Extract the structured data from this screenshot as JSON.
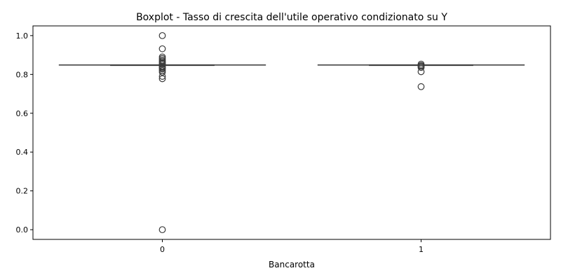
{
  "chart_data": {
    "type": "box",
    "title": "Boxplot - Tasso di crescita dell'utile operativo condizionato su Y",
    "xlabel": "Bancarotta",
    "ylabel": "",
    "categories": [
      "0",
      "1"
    ],
    "ylim": [
      -0.05,
      1.05
    ],
    "yticks": [
      0.0,
      0.2,
      0.4,
      0.6,
      0.8,
      1.0
    ],
    "ytick_labels": [
      "0.0",
      "0.2",
      "0.4",
      "0.6",
      "0.8",
      "1.0"
    ],
    "grid": false,
    "boxes": [
      {
        "category": "0",
        "whisker_low": 0.848,
        "q1": 0.848,
        "median": 0.848,
        "q3": 0.849,
        "whisker_high": 0.849,
        "outliers": [
          1.0,
          0.932,
          0.89,
          0.882,
          0.874,
          0.868,
          0.862,
          0.857,
          0.853,
          0.843,
          0.838,
          0.833,
          0.828,
          0.82,
          0.812,
          0.79,
          0.778,
          0.0
        ]
      },
      {
        "category": "1",
        "whisker_low": 0.848,
        "q1": 0.848,
        "median": 0.848,
        "q3": 0.849,
        "whisker_high": 0.849,
        "outliers": [
          0.853,
          0.846,
          0.842,
          0.836,
          0.814,
          0.737
        ]
      }
    ],
    "colors": {
      "stroke": "#3a3a3a",
      "axis": "#000000",
      "background": "#ffffff"
    }
  }
}
